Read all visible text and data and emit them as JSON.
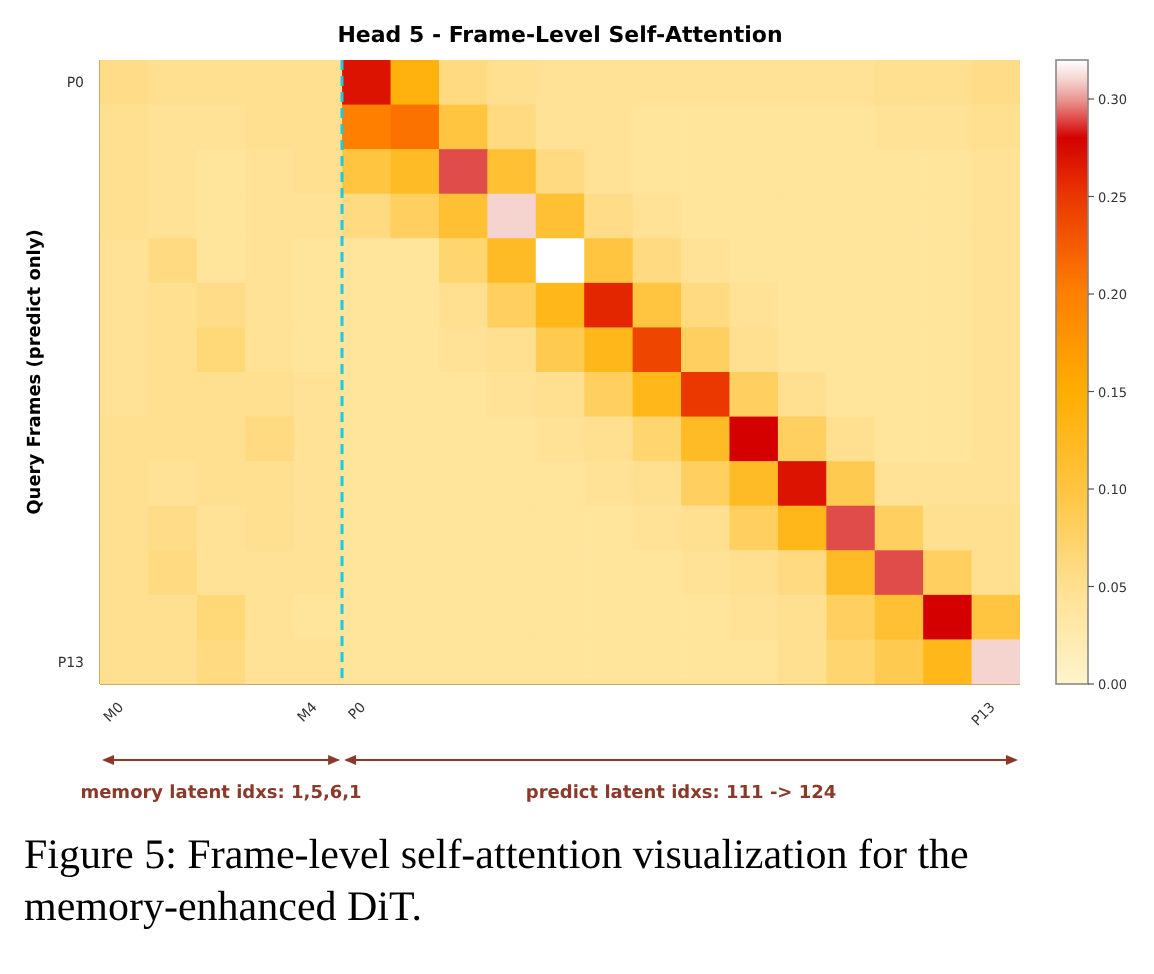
{
  "chart_data": {
    "type": "heatmap",
    "title": "Head 5 - Frame-Level Self-Attention",
    "ylabel": "Query Frames (predict only)",
    "categories": [
      "M0",
      null,
      null,
      null,
      "M4",
      "P0",
      null,
      null,
      null,
      null,
      null,
      null,
      null,
      null,
      null,
      null,
      null,
      null,
      "P13"
    ],
    "y_categories": [
      "P0",
      null,
      null,
      null,
      null,
      null,
      null,
      null,
      null,
      null,
      null,
      null,
      null,
      "P13"
    ],
    "cells": [
      [
        0.055,
        0.05,
        0.05,
        0.05,
        0.05,
        0.27,
        0.14,
        0.06,
        0.05,
        0.045,
        0.045,
        0.045,
        0.045,
        0.045,
        0.045,
        0.045,
        0.05,
        0.05,
        0.055
      ],
      [
        0.05,
        0.045,
        0.045,
        0.05,
        0.05,
        0.2,
        0.21,
        0.1,
        0.06,
        0.045,
        0.045,
        0.04,
        0.04,
        0.04,
        0.04,
        0.04,
        0.045,
        0.045,
        0.05
      ],
      [
        0.05,
        0.045,
        0.04,
        0.045,
        0.05,
        0.1,
        0.12,
        0.29,
        0.11,
        0.06,
        0.045,
        0.04,
        0.04,
        0.04,
        0.04,
        0.04,
        0.04,
        0.04,
        0.045
      ],
      [
        0.05,
        0.045,
        0.04,
        0.045,
        0.045,
        0.06,
        0.08,
        0.11,
        0.31,
        0.11,
        0.055,
        0.045,
        0.04,
        0.04,
        0.04,
        0.04,
        0.04,
        0.04,
        0.045
      ],
      [
        0.045,
        0.06,
        0.04,
        0.045,
        0.04,
        0.04,
        0.04,
        0.07,
        0.12,
        0.32,
        0.1,
        0.06,
        0.045,
        0.04,
        0.04,
        0.04,
        0.04,
        0.04,
        0.045
      ],
      [
        0.045,
        0.05,
        0.055,
        0.045,
        0.04,
        0.04,
        0.04,
        0.05,
        0.08,
        0.13,
        0.26,
        0.1,
        0.06,
        0.045,
        0.04,
        0.04,
        0.04,
        0.04,
        0.045
      ],
      [
        0.045,
        0.05,
        0.065,
        0.045,
        0.04,
        0.04,
        0.04,
        0.045,
        0.05,
        0.09,
        0.13,
        0.24,
        0.08,
        0.05,
        0.04,
        0.04,
        0.04,
        0.04,
        0.045
      ],
      [
        0.045,
        0.05,
        0.05,
        0.05,
        0.045,
        0.04,
        0.04,
        0.04,
        0.045,
        0.05,
        0.08,
        0.13,
        0.25,
        0.08,
        0.05,
        0.04,
        0.04,
        0.04,
        0.045
      ],
      [
        0.05,
        0.05,
        0.05,
        0.06,
        0.045,
        0.04,
        0.04,
        0.04,
        0.04,
        0.045,
        0.05,
        0.07,
        0.12,
        0.28,
        0.08,
        0.05,
        0.04,
        0.04,
        0.045
      ],
      [
        0.05,
        0.045,
        0.05,
        0.05,
        0.045,
        0.04,
        0.04,
        0.04,
        0.04,
        0.04,
        0.045,
        0.05,
        0.08,
        0.12,
        0.27,
        0.09,
        0.045,
        0.045,
        0.045
      ],
      [
        0.05,
        0.055,
        0.045,
        0.05,
        0.045,
        0.04,
        0.04,
        0.04,
        0.04,
        0.04,
        0.04,
        0.045,
        0.05,
        0.08,
        0.13,
        0.29,
        0.08,
        0.05,
        0.05
      ],
      [
        0.05,
        0.06,
        0.045,
        0.045,
        0.045,
        0.04,
        0.04,
        0.04,
        0.04,
        0.04,
        0.04,
        0.04,
        0.045,
        0.05,
        0.06,
        0.12,
        0.29,
        0.08,
        0.05
      ],
      [
        0.05,
        0.05,
        0.065,
        0.045,
        0.04,
        0.04,
        0.04,
        0.04,
        0.04,
        0.04,
        0.04,
        0.04,
        0.04,
        0.045,
        0.05,
        0.08,
        0.11,
        0.28,
        0.1
      ],
      [
        0.05,
        0.05,
        0.06,
        0.045,
        0.045,
        0.04,
        0.04,
        0.04,
        0.04,
        0.04,
        0.04,
        0.04,
        0.04,
        0.04,
        0.05,
        0.07,
        0.09,
        0.13,
        0.31
      ]
    ],
    "clim": [
      0,
      0.32
    ],
    "cticks": [
      {
        "value": 0,
        "label": "0.00"
      },
      {
        "value": 0.05,
        "label": "0.05"
      },
      {
        "value": 0.1,
        "label": "0.10"
      },
      {
        "value": 0.15,
        "label": "0.15"
      },
      {
        "value": 0.2,
        "label": "0.20"
      },
      {
        "value": 0.25,
        "label": "0.25"
      },
      {
        "value": 0.3,
        "label": "0.30"
      }
    ],
    "annotations": [
      "memory latent idxs: 1,5,6,1",
      "predict latent idxs: 111 -> 124",
      "Figure 5: Frame-level self-attention visualization for the memory-enhanced DiT."
    ]
  }
}
